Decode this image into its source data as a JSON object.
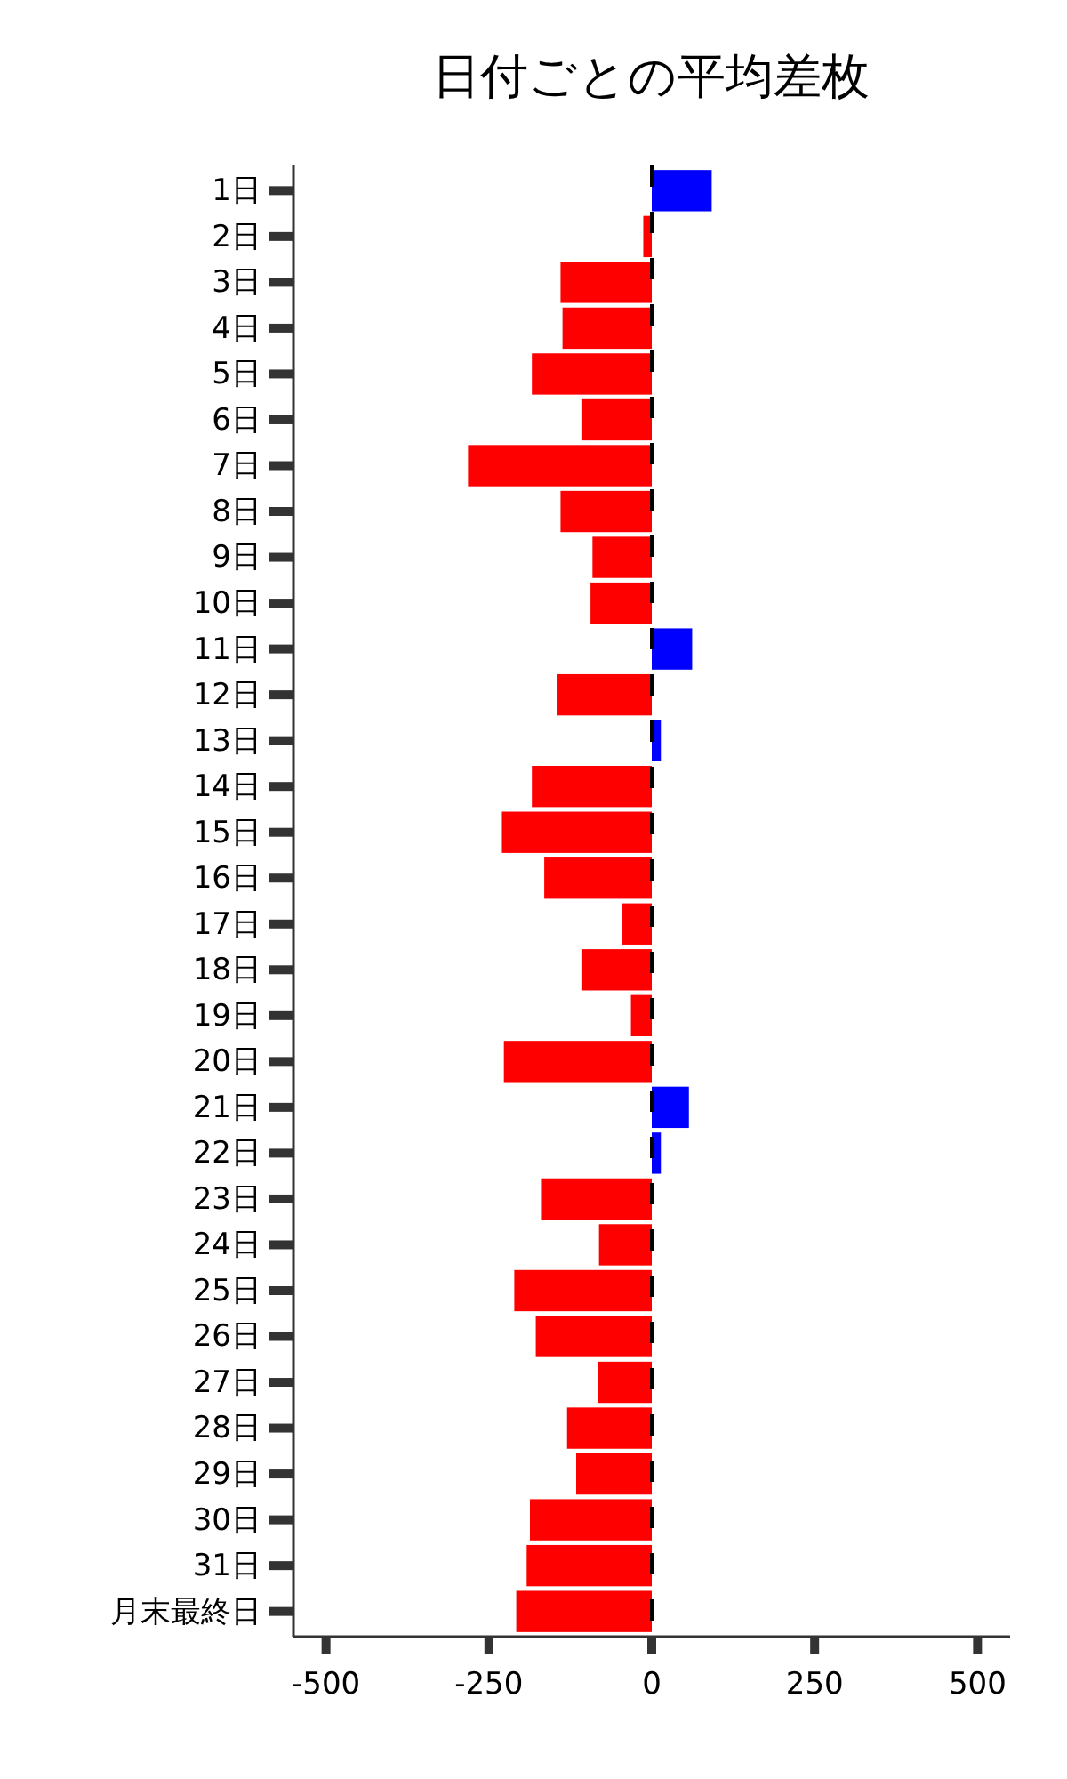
{
  "chart_data": {
    "type": "bar",
    "orientation": "horizontal",
    "title": "日付ごとの平均差枚",
    "categories": [
      "1日",
      "2日",
      "3日",
      "4日",
      "5日",
      "6日",
      "7日",
      "8日",
      "9日",
      "10日",
      "11日",
      "12日",
      "13日",
      "14日",
      "15日",
      "16日",
      "17日",
      "18日",
      "19日",
      "20日",
      "21日",
      "22日",
      "23日",
      "24日",
      "25日",
      "26日",
      "27日",
      "28日",
      "29日",
      "30日",
      "31日",
      "月末最終日"
    ],
    "values": [
      92,
      -13,
      -140,
      -137,
      -184,
      -108,
      -282,
      -140,
      -91,
      -94,
      62,
      -146,
      14,
      -184,
      -230,
      -165,
      -45,
      -108,
      -32,
      -227,
      57,
      14,
      -170,
      -81,
      -211,
      -178,
      -83,
      -130,
      -116,
      -187,
      -192,
      -208
    ],
    "colors": [
      "#0000ff",
      "#ff0000",
      "#ff0000",
      "#ff0000",
      "#ff0000",
      "#ff0000",
      "#ff0000",
      "#ff0000",
      "#ff0000",
      "#ff0000",
      "#0000ff",
      "#ff0000",
      "#0000ff",
      "#ff0000",
      "#ff0000",
      "#ff0000",
      "#ff0000",
      "#ff0000",
      "#ff0000",
      "#ff0000",
      "#0000ff",
      "#0000ff",
      "#ff0000",
      "#ff0000",
      "#ff0000",
      "#ff0000",
      "#ff0000",
      "#ff0000",
      "#ff0000",
      "#ff0000",
      "#ff0000",
      "#ff0000"
    ],
    "xlim": [
      -550,
      550
    ],
    "xticks": [
      -500,
      -250,
      0,
      250,
      500
    ],
    "ref_lines": [
      {
        "axis": "x",
        "value": 0,
        "color": "#000000",
        "line_style": "dashed"
      }
    ],
    "grid": false
  }
}
